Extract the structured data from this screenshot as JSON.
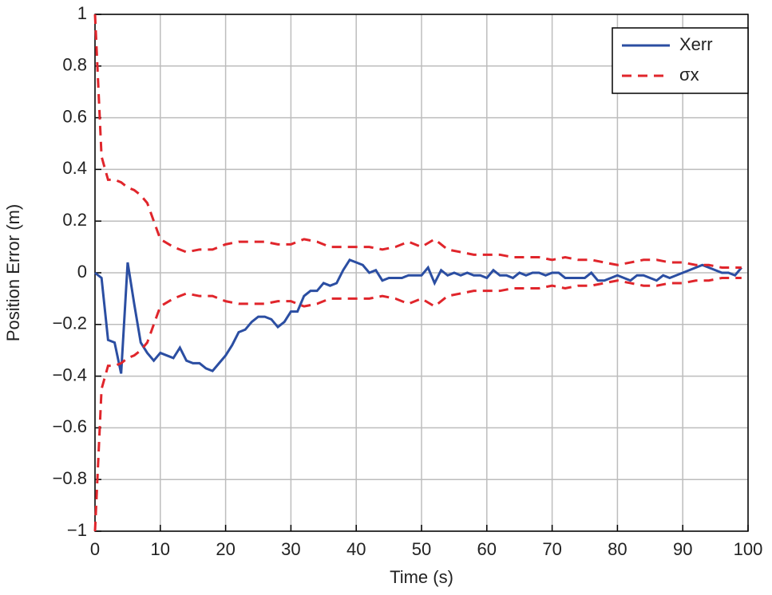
{
  "chart_data": {
    "type": "line",
    "xlabel": "Time (s)",
    "ylabel": "Position Error (m)",
    "xlim": [
      0,
      100
    ],
    "ylim": [
      -1,
      1
    ],
    "xticks": [
      0,
      10,
      20,
      30,
      40,
      50,
      60,
      70,
      80,
      90,
      100
    ],
    "yticks": [
      {
        "value": -1,
        "label": "−1"
      },
      {
        "value": -0.8,
        "label": "−0.8"
      },
      {
        "value": -0.6,
        "label": "−0.6"
      },
      {
        "value": -0.4,
        "label": "−0.4"
      },
      {
        "value": -0.2,
        "label": "−0.2"
      },
      0,
      0.2,
      0.4,
      0.6,
      0.8,
      1
    ],
    "grid": true,
    "legend": "top-right",
    "series": [
      {
        "name": "Xerr",
        "color": "#2b4ea2",
        "dashed": false,
        "x": [
          0,
          1,
          2,
          3,
          4,
          5,
          6,
          7,
          8,
          9,
          10,
          11,
          12,
          13,
          14,
          15,
          16,
          17,
          18,
          19,
          20,
          21,
          22,
          23,
          24,
          25,
          26,
          27,
          28,
          29,
          30,
          31,
          32,
          33,
          34,
          35,
          36,
          37,
          38,
          39,
          40,
          41,
          42,
          43,
          44,
          45,
          46,
          47,
          48,
          49,
          50,
          51,
          52,
          53,
          54,
          55,
          56,
          57,
          58,
          59,
          60,
          61,
          62,
          63,
          64,
          65,
          66,
          67,
          68,
          69,
          70,
          71,
          72,
          73,
          74,
          75,
          76,
          77,
          78,
          79,
          80,
          81,
          82,
          83,
          84,
          85,
          86,
          87,
          88,
          89,
          90,
          91,
          92,
          93,
          94,
          95,
          96,
          97,
          98,
          99
        ],
        "values": [
          0,
          -0.02,
          -0.26,
          -0.27,
          -0.39,
          0.04,
          -0.12,
          -0.27,
          -0.31,
          -0.34,
          -0.31,
          -0.32,
          -0.33,
          -0.29,
          -0.34,
          -0.35,
          -0.35,
          -0.37,
          -0.38,
          -0.35,
          -0.32,
          -0.28,
          -0.23,
          -0.22,
          -0.19,
          -0.17,
          -0.17,
          -0.18,
          -0.21,
          -0.19,
          -0.15,
          -0.15,
          -0.09,
          -0.07,
          -0.07,
          -0.04,
          -0.05,
          -0.04,
          0.01,
          0.05,
          0.04,
          0.03,
          0,
          0.01,
          -0.03,
          -0.02,
          -0.02,
          -0.02,
          -0.01,
          -0.01,
          -0.01,
          0.02,
          -0.04,
          0.01,
          -0.01,
          0,
          -0.01,
          0,
          -0.01,
          -0.01,
          -0.02,
          0.01,
          -0.01,
          -0.01,
          -0.02,
          0,
          -0.01,
          0,
          0,
          -0.01,
          0,
          0,
          -0.02,
          -0.02,
          -0.02,
          -0.02,
          0,
          -0.03,
          -0.03,
          -0.02,
          -0.01,
          -0.02,
          -0.03,
          -0.01,
          -0.01,
          -0.02,
          -0.03,
          -0.01,
          -0.02,
          -0.01,
          0,
          0.01,
          0.02,
          0.03,
          0.02,
          0.01,
          0,
          0,
          -0.01,
          0.02
        ]
      },
      {
        "name": "σx",
        "color": "#e0252b",
        "dashed": true,
        "x": [
          0,
          1,
          2,
          3,
          4,
          5,
          6,
          7,
          8,
          9,
          10,
          12,
          14,
          16,
          18,
          20,
          22,
          24,
          26,
          28,
          30,
          32,
          34,
          36,
          38,
          40,
          42,
          44,
          46,
          48,
          50,
          52,
          54,
          56,
          58,
          60,
          62,
          64,
          66,
          68,
          70,
          72,
          74,
          76,
          78,
          80,
          82,
          84,
          86,
          88,
          90,
          92,
          94,
          96,
          98,
          99
        ],
        "values": [
          1,
          0.45,
          0.36,
          0.36,
          0.35,
          0.33,
          0.32,
          0.3,
          0.27,
          0.2,
          0.13,
          0.1,
          0.08,
          0.09,
          0.09,
          0.11,
          0.12,
          0.12,
          0.12,
          0.11,
          0.11,
          0.13,
          0.12,
          0.1,
          0.1,
          0.1,
          0.1,
          0.09,
          0.1,
          0.12,
          0.1,
          0.13,
          0.09,
          0.08,
          0.07,
          0.07,
          0.07,
          0.06,
          0.06,
          0.06,
          0.05,
          0.06,
          0.05,
          0.05,
          0.04,
          0.03,
          0.04,
          0.05,
          0.05,
          0.04,
          0.04,
          0.03,
          0.03,
          0.02,
          0.02,
          0.02
        ],
        "lower": [
          -1,
          -0.45,
          -0.36,
          -0.36,
          -0.35,
          -0.33,
          -0.32,
          -0.3,
          -0.27,
          -0.2,
          -0.13,
          -0.1,
          -0.08,
          -0.09,
          -0.09,
          -0.11,
          -0.12,
          -0.12,
          -0.12,
          -0.11,
          -0.11,
          -0.13,
          -0.12,
          -0.1,
          -0.1,
          -0.1,
          -0.1,
          -0.09,
          -0.1,
          -0.12,
          -0.1,
          -0.13,
          -0.09,
          -0.08,
          -0.07,
          -0.07,
          -0.07,
          -0.06,
          -0.06,
          -0.06,
          -0.05,
          -0.06,
          -0.05,
          -0.05,
          -0.04,
          -0.03,
          -0.04,
          -0.05,
          -0.05,
          -0.04,
          -0.04,
          -0.03,
          -0.03,
          -0.02,
          -0.02,
          -0.02
        ]
      }
    ]
  }
}
